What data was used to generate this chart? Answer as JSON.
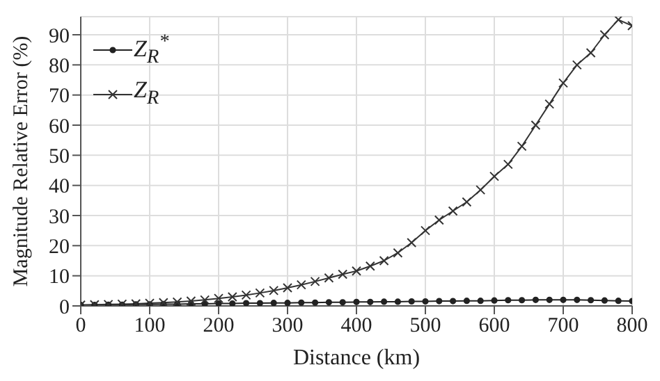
{
  "chart_data": {
    "type": "line",
    "xlabel": "Distance (km)",
    "ylabel": "Magnitude Relative Error (%)",
    "x": [
      0,
      20,
      40,
      60,
      80,
      100,
      120,
      140,
      160,
      180,
      200,
      220,
      240,
      260,
      280,
      300,
      320,
      340,
      360,
      380,
      400,
      420,
      440,
      460,
      480,
      500,
      520,
      540,
      560,
      580,
      600,
      620,
      640,
      660,
      680,
      700,
      720,
      740,
      760,
      780,
      800
    ],
    "series": [
      {
        "name": "Z$_{R}$$^{*}$",
        "color": "#222222",
        "marker": "circle",
        "values": [
          0.3,
          0.3,
          0.4,
          0.4,
          0.5,
          0.5,
          0.6,
          0.6,
          0.7,
          0.7,
          0.8,
          0.8,
          0.9,
          0.9,
          1.0,
          1.0,
          1.1,
          1.1,
          1.2,
          1.2,
          1.3,
          1.3,
          1.4,
          1.4,
          1.5,
          1.5,
          1.6,
          1.6,
          1.7,
          1.7,
          1.8,
          1.9,
          1.9,
          2.0,
          2.0,
          2.0,
          2.0,
          1.9,
          1.8,
          1.7,
          1.6
        ]
      },
      {
        "name": "Z$_{R}$",
        "color": "#333333",
        "marker": "cross",
        "values": [
          0.3,
          0.4,
          0.5,
          0.6,
          0.7,
          0.9,
          1.1,
          1.3,
          1.6,
          2.0,
          2.5,
          3.0,
          3.6,
          4.3,
          5.1,
          6.0,
          7.0,
          8.1,
          9.3,
          10.5,
          11.6,
          13.2,
          15.0,
          17.6,
          21.0,
          25.0,
          28.5,
          31.5,
          34.5,
          38.5,
          43.0,
          47.0,
          53.0,
          60.0,
          67.0,
          74.0,
          80.0,
          84.0,
          90.0,
          95.0,
          93.0
        ]
      }
    ],
    "xlim": [
      0,
      800
    ],
    "xticks": [
      0,
      100,
      200,
      300,
      400,
      500,
      600,
      700,
      800
    ],
    "ylim": [
      0,
      96
    ],
    "yticks": [
      0,
      10,
      20,
      30,
      40,
      50,
      60,
      70,
      80,
      90
    ],
    "grid": true,
    "legend": "top left",
    "line_style": "solid"
  }
}
